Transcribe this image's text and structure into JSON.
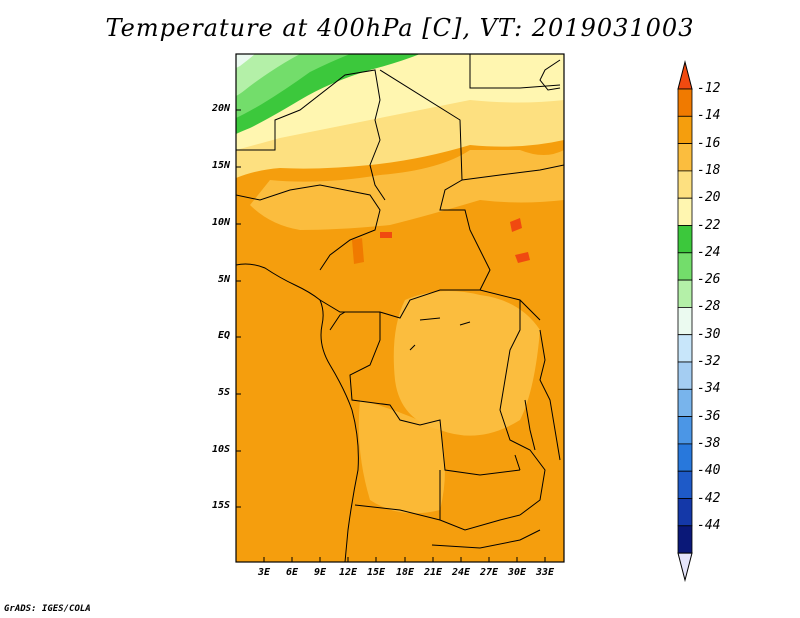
{
  "title": "Temperature at 400hPa [C], VT: 2019031003",
  "credit": "GrADS: IGES/COLA",
  "map": {
    "y_labels": [
      "20N",
      "15N",
      "10N",
      "5N",
      "EQ",
      "5S",
      "10S",
      "15S"
    ],
    "x_labels": [
      "3E",
      "6E",
      "9E",
      "12E",
      "15E",
      "18E",
      "21E",
      "24E",
      "27E",
      "30E",
      "33E"
    ]
  },
  "colorbar": {
    "labels": [
      "-12",
      "-14",
      "-16",
      "-18",
      "-20",
      "-22",
      "-24",
      "-26",
      "-28",
      "-30",
      "-32",
      "-34",
      "-36",
      "-38",
      "-40",
      "-42",
      "-44"
    ],
    "colors": [
      "#f04a10",
      "#f07a00",
      "#f59e0d",
      "#fbbd3e",
      "#fde080",
      "#fff6b0",
      "#3cc83c",
      "#73dd6b",
      "#b4f0a8",
      "#ebfaf0",
      "#c8e6fa",
      "#a4cdf2",
      "#78b4ec",
      "#4b96e6",
      "#2878dc",
      "#1e5ac8",
      "#1438a8",
      "#0a1878",
      "#e4e4fa"
    ]
  }
}
